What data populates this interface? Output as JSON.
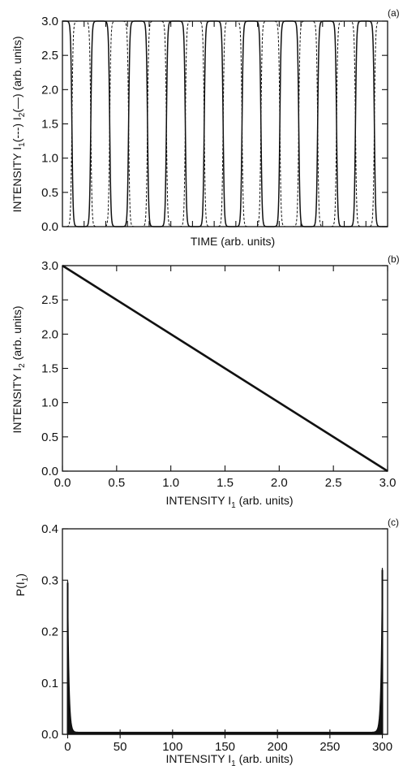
{
  "chart_data": [
    {
      "panel": "(a)",
      "type": "line",
      "xlabel": "TIME  (arb. units)",
      "ylabel": "INTENSITY I1(---) I2(—)  (arb. units)",
      "ylabel_parts": {
        "pre": "INTENSITY I",
        "sub1": "1",
        "mid": "(---) I",
        "sub2": "2",
        "post": "(—)  (arb. units)"
      },
      "ylim": [
        0,
        3
      ],
      "yticks": [
        "0.0",
        "0.5",
        "1.0",
        "1.5",
        "2.0",
        "2.5",
        "3.0"
      ],
      "xticks_count": 15,
      "series": [
        {
          "style": "dashed",
          "pulses_high_at": [
            0.5,
            1.5,
            2.5,
            3.5,
            4.5,
            5.5,
            6.5,
            7.5,
            8.5
          ],
          "low": 0,
          "high": 3
        },
        {
          "style": "solid",
          "pulses_high_at": [
            1.0,
            2.0,
            3.0,
            4.0,
            5.0,
            6.0,
            7.0,
            8.0
          ],
          "low": 0,
          "high": 3
        }
      ],
      "x_range_cycles": [
        0,
        8.6
      ]
    },
    {
      "panel": "(b)",
      "type": "line",
      "xlabel": "INTENSITY I1  (arb. units)",
      "xlabel_parts": {
        "pre": "INTENSITY I",
        "sub": "1",
        "post": "  (arb. units)"
      },
      "ylabel": "INTENSITY I2  (arb. units)",
      "ylabel_parts": {
        "pre": "INTENSITY I",
        "sub": "2",
        "post": "  (arb. units)"
      },
      "xlim": [
        0,
        3
      ],
      "ylim": [
        0,
        3
      ],
      "xticks": [
        "0.0",
        "0.5",
        "1.0",
        "1.5",
        "2.0",
        "2.5",
        "3.0"
      ],
      "yticks": [
        "0.0",
        "0.5",
        "1.0",
        "1.5",
        "2.0",
        "2.5",
        "3.0"
      ],
      "x": [
        0,
        3
      ],
      "y": [
        3,
        0
      ]
    },
    {
      "panel": "(c)",
      "type": "line",
      "xlabel": "INTENSITY I1  (arb. units)",
      "xlabel_parts": {
        "pre": "INTENSITY I",
        "sub": "1",
        "post": "  (arb. units)"
      },
      "ylabel": "P(I1)",
      "ylabel_parts": {
        "pre": "P(I",
        "sub": "1",
        "post": ")"
      },
      "xlim": [
        -5,
        305
      ],
      "ylim": [
        0,
        0.4
      ],
      "xticks": [
        "0",
        "50",
        "100",
        "150",
        "200",
        "250",
        "300"
      ],
      "yticks": [
        "0.0",
        "0.1",
        "0.2",
        "0.3",
        "0.4"
      ],
      "peaks": [
        {
          "x": 0,
          "y": 0.295
        },
        {
          "x": 300,
          "y": 0.32
        }
      ],
      "baseline": 0.004
    }
  ]
}
